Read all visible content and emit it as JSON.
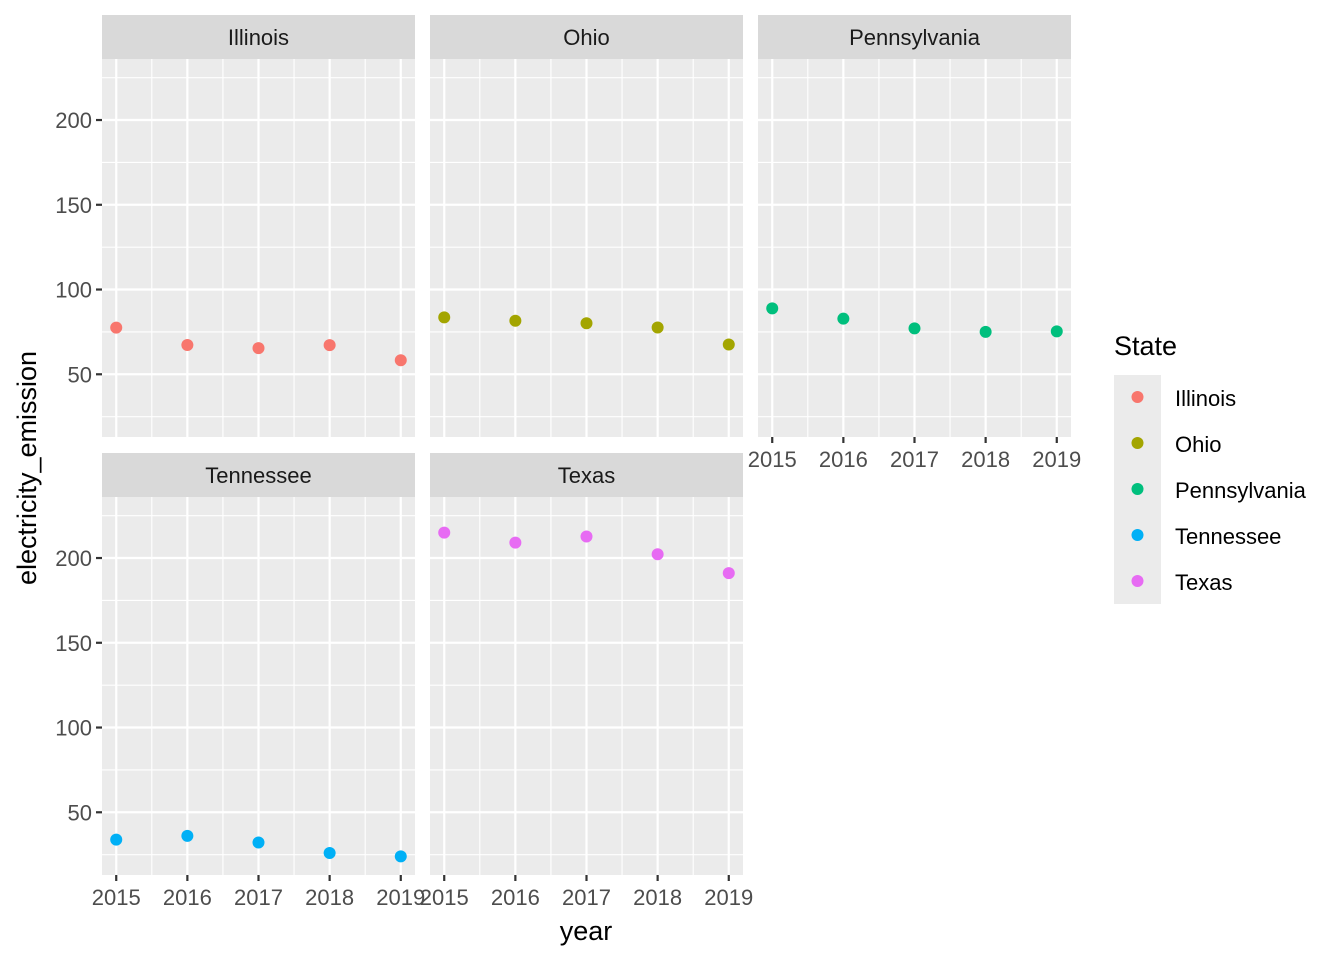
{
  "chart_data": {
    "type": "scatter",
    "x_label": "year",
    "y_label": "electricity_emission",
    "x_ticks": [
      2015,
      2016,
      2017,
      2018,
      2019
    ],
    "y_ticks": [
      50,
      100,
      150,
      200
    ],
    "xlim": [
      2014.8,
      2019.2
    ],
    "ylim": [
      13,
      236
    ],
    "legend": {
      "title": "State",
      "position": "right",
      "entries": [
        "Illinois",
        "Ohio",
        "Pennsylvania",
        "Tennessee",
        "Texas"
      ]
    },
    "panels": [
      {
        "name": "Illinois",
        "color": "#F8766D",
        "x": [
          2015,
          2016,
          2017,
          2018,
          2019
        ],
        "y": [
          77.5,
          67.3,
          65.4,
          67.2,
          58.3
        ]
      },
      {
        "name": "Ohio",
        "color": "#A3A500",
        "x": [
          2015,
          2016,
          2017,
          2018,
          2019
        ],
        "y": [
          83.6,
          81.6,
          80.1,
          77.6,
          67.6
        ]
      },
      {
        "name": "Pennsylvania",
        "color": "#00BF7D",
        "x": [
          2015,
          2016,
          2017,
          2018,
          2019
        ],
        "y": [
          88.9,
          82.8,
          77.1,
          75.0,
          75.3
        ]
      },
      {
        "name": "Tennessee",
        "color": "#00B0F6",
        "x": [
          2015,
          2016,
          2017,
          2018,
          2019
        ],
        "y": [
          33.9,
          36.1,
          32.2,
          26.0,
          24.0
        ]
      },
      {
        "name": "Texas",
        "color": "#E76BF3",
        "x": [
          2015,
          2016,
          2017,
          2018,
          2019
        ],
        "y": [
          215.0,
          209.1,
          212.7,
          202.2,
          191.1
        ]
      }
    ]
  }
}
